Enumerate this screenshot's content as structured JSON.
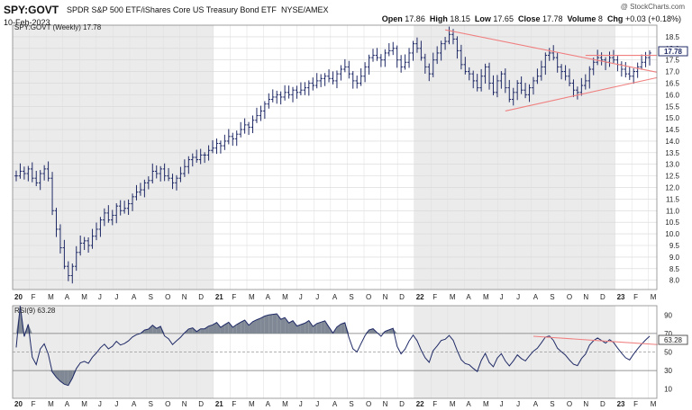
{
  "header": {
    "symbol": "SPY:GOVT",
    "name": "SPDR S&P 500 ETF/iShares Core US Treasury Bond ETF",
    "exchange": "NYSE/AMEX",
    "date": "10-Feb-2023",
    "credit": "@ StockCharts.com",
    "open_label": "Open",
    "open": "17.86",
    "high_label": "High",
    "high": "18.15",
    "low_label": "Low",
    "low": "17.65",
    "close_label": "Close",
    "close": "17.78",
    "volume_label": "Volume",
    "volume": "8",
    "chg_label": "Chg",
    "chg": "+0.03 (+0.18%)"
  },
  "price_legend": "SPY:GOVT (Weekly) 17.78",
  "price_last_label": "17.78",
  "rsi_legend": "RSI(9) 63.28",
  "rsi_last_label": "63.28",
  "chart_data": [
    {
      "type": "ohlc",
      "title": "SPY:GOVT (Weekly) 17.78",
      "frequency": "weekly",
      "ylim": [
        7.6,
        19.0
      ],
      "y_ticks": [
        8.0,
        8.5,
        9.0,
        9.5,
        10.0,
        10.5,
        11.0,
        11.5,
        12.0,
        12.5,
        13.0,
        13.5,
        14.0,
        14.5,
        15.0,
        15.5,
        16.0,
        16.5,
        17.0,
        17.5,
        18.0,
        18.5
      ],
      "x_tick_labels": [
        "20",
        "F",
        "M",
        "A",
        "M",
        "J",
        "J",
        "A",
        "S",
        "O",
        "N",
        "D",
        "21",
        "F",
        "M",
        "A",
        "M",
        "J",
        "J",
        "A",
        "S",
        "O",
        "N",
        "D",
        "22",
        "F",
        "M",
        "A",
        "M",
        "J",
        "J",
        "A",
        "S",
        "O",
        "N",
        "D",
        "23",
        "F",
        "M"
      ],
      "last_value": 17.78,
      "close_series": [
        12.5,
        12.7,
        12.6,
        12.8,
        12.4,
        12.2,
        12.6,
        12.8,
        12.4,
        11.0,
        10.2,
        9.4,
        8.6,
        8.2,
        8.6,
        9.2,
        9.6,
        9.7,
        9.5,
        9.9,
        10.2,
        10.6,
        10.9,
        10.6,
        10.8,
        11.2,
        11.0,
        11.1,
        11.3,
        11.6,
        11.8,
        11.9,
        12.2,
        12.3,
        12.7,
        12.6,
        12.8,
        12.5,
        12.4,
        12.2,
        12.4,
        12.6,
        12.9,
        13.2,
        13.3,
        13.2,
        13.4,
        13.4,
        13.6,
        13.7,
        13.9,
        13.8,
        14.0,
        14.2,
        14.1,
        14.3,
        14.5,
        14.7,
        14.6,
        14.9,
        15.1,
        15.3,
        15.6,
        15.8,
        15.9,
        16.0,
        15.9,
        16.1,
        16.0,
        16.2,
        16.1,
        16.2,
        16.3,
        16.5,
        16.4,
        16.6,
        16.7,
        16.8,
        16.7,
        16.6,
        16.9,
        17.1,
        17.2,
        16.9,
        16.6,
        16.5,
        16.8,
        17.2,
        17.6,
        17.7,
        17.6,
        17.5,
        17.8,
        17.9,
        18.0,
        17.5,
        17.2,
        17.4,
        17.8,
        18.2,
        18.0,
        17.6,
        17.2,
        16.9,
        17.5,
        17.8,
        18.2,
        18.3,
        18.6,
        18.4,
        17.9,
        17.3,
        17.0,
        16.9,
        16.6,
        16.3,
        16.8,
        17.2,
        16.5,
        16.1,
        16.6,
        16.9,
        16.3,
        15.8,
        16.1,
        16.5,
        16.2,
        16.0,
        16.3,
        16.6,
        16.8,
        17.2,
        17.7,
        17.8,
        17.6,
        17.2,
        17.0,
        16.8,
        16.5,
        16.2,
        16.1,
        16.4,
        16.6,
        17.1,
        17.4,
        17.6,
        17.5,
        17.4,
        17.6,
        17.5,
        17.3,
        17.1,
        16.9,
        16.8,
        17.0,
        17.2,
        17.4,
        17.6,
        17.8
      ],
      "annotations": [
        {
          "type": "trendline",
          "description": "descending resistance line from the 2022 peak through the 2022-2023 highs",
          "from": {
            "t": 107,
            "y": 18.8
          },
          "to": {
            "t": 160,
            "y": 17.1
          }
        },
        {
          "type": "trendline",
          "description": "ascending support line under the 2022-2023 lows",
          "from": {
            "t": 122,
            "y": 15.3
          },
          "to": {
            "t": 160,
            "y": 16.6
          }
        },
        {
          "type": "horizontal_line",
          "y": 17.7,
          "from_t": 142
        }
      ]
    },
    {
      "type": "line",
      "title": "RSI(9) 63.28",
      "ylim": [
        0,
        100
      ],
      "y_ticks": [
        10,
        30,
        50,
        70,
        90
      ],
      "reference_lines": [
        30,
        50,
        70
      ],
      "x_tick_labels": [
        "20",
        "F",
        "M",
        "A",
        "M",
        "J",
        "J",
        "A",
        "S",
        "O",
        "N",
        "D",
        "21",
        "F",
        "M",
        "A",
        "M",
        "J",
        "J",
        "A",
        "S",
        "O",
        "N",
        "D",
        "22",
        "F",
        "M",
        "A",
        "M",
        "J",
        "J",
        "A",
        "S",
        "O",
        "N",
        "D",
        "23",
        "F",
        "M"
      ],
      "last_value": 63.28,
      "annotations": [
        {
          "type": "trendline",
          "description": "declining RSI resistance line across the 2022-2023 highs",
          "from": {
            "t": 129,
            "y": 67
          },
          "to": {
            "t": 160,
            "y": 58
          }
        }
      ]
    }
  ]
}
